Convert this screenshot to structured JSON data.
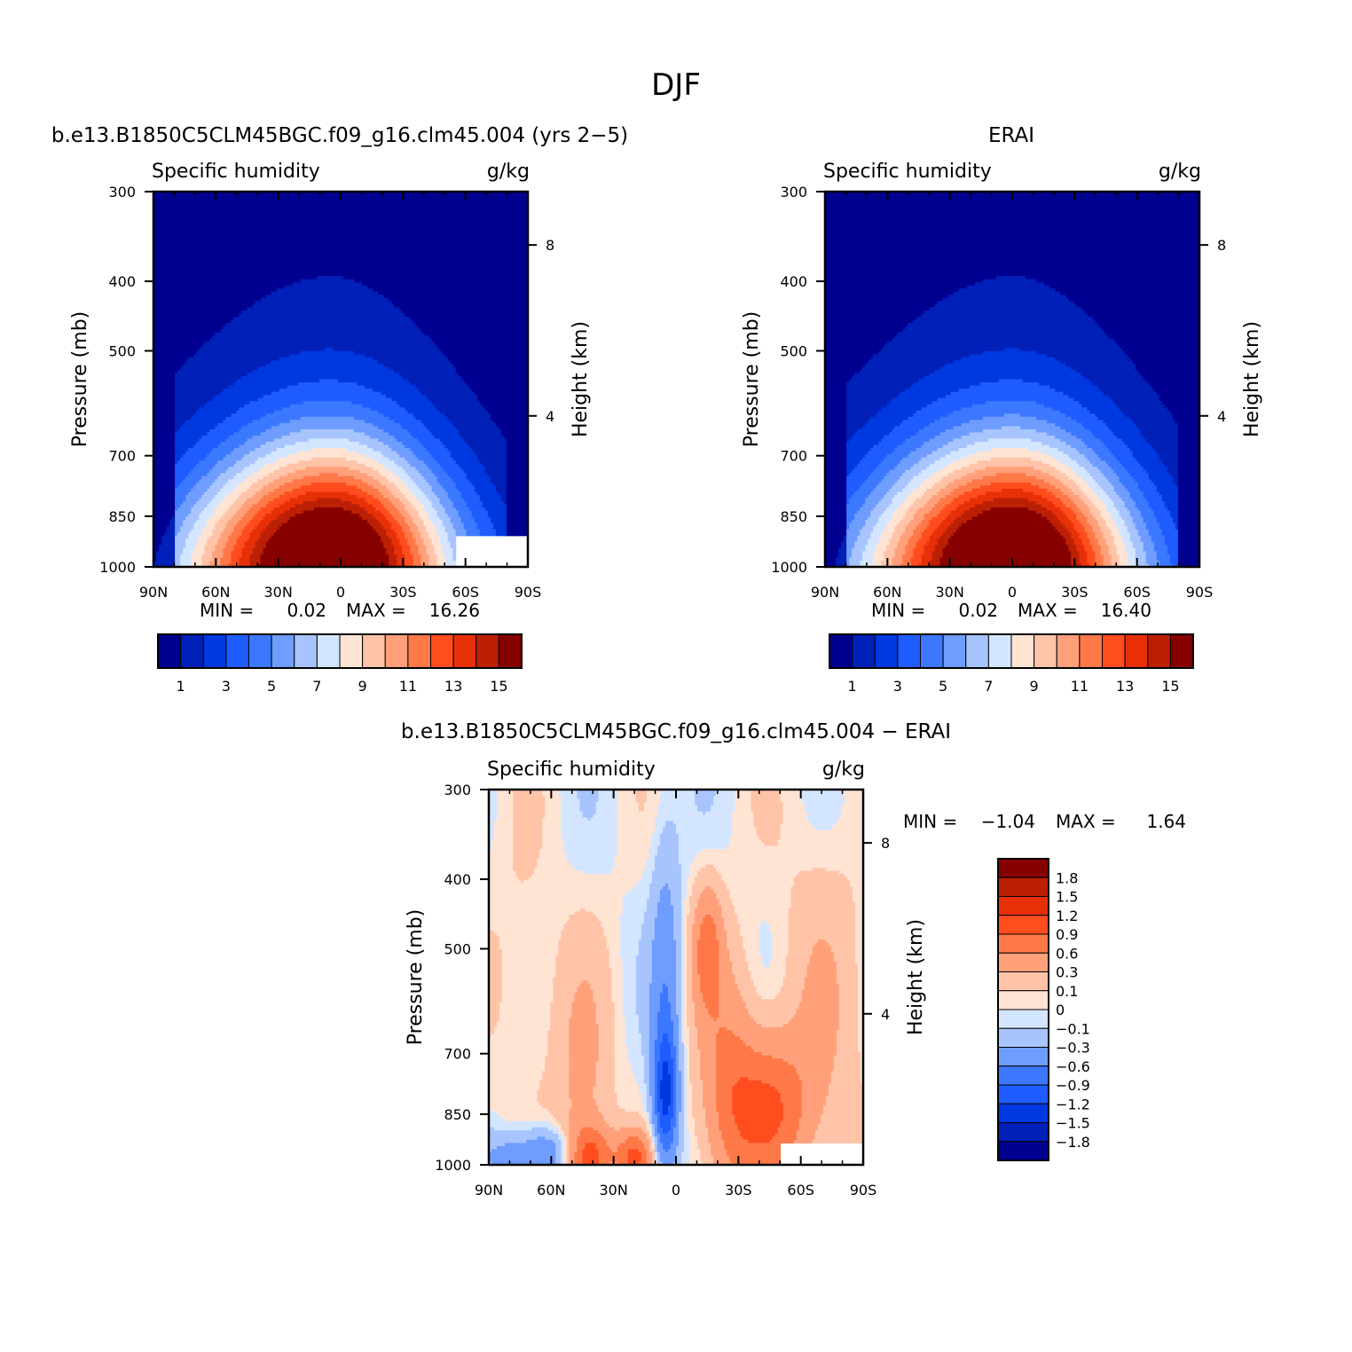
{
  "figure": {
    "title": "DJF",
    "stats_min_label": "MIN =",
    "stats_max_label": "MAX ="
  },
  "chart_data": [
    {
      "type": "heatmap",
      "title": "b.e13.B1850C5CLM45BGC.f09_g16.clm45.004 (yrs 2−5)",
      "variable": "Specific humidity",
      "units": "g/kg",
      "ylabel": "Pressure (mb)",
      "ylabel_right": "Height (km)",
      "x_ticks": [
        "90N",
        "60N",
        "30N",
        "0",
        "30S",
        "60S",
        "90S"
      ],
      "y_ticks": [
        "300",
        "400",
        "500",
        "700",
        "850",
        "1000"
      ],
      "y_ticks_right": [
        "8",
        "4"
      ],
      "ylim": [
        1000,
        300
      ],
      "min": "0.02",
      "max": "16.26",
      "colorbar_labels": [
        "1",
        "3",
        "5",
        "7",
        "9",
        "11",
        "13",
        "15"
      ],
      "colorbar_orientation": "horizontal",
      "peak_latitude": 5,
      "peak_value": 16.26,
      "missing_region": "below ~900 mb poleward of ~55S"
    },
    {
      "type": "heatmap",
      "title": "ERAI",
      "variable": "Specific humidity",
      "units": "g/kg",
      "ylabel": "Pressure (mb)",
      "ylabel_right": "Height (km)",
      "x_ticks": [
        "90N",
        "60N",
        "30N",
        "0",
        "30S",
        "60S",
        "90S"
      ],
      "y_ticks": [
        "300",
        "400",
        "500",
        "700",
        "850",
        "1000"
      ],
      "y_ticks_right": [
        "8",
        "4"
      ],
      "ylim": [
        1000,
        300
      ],
      "min": "0.02",
      "max": "16.40",
      "colorbar_labels": [
        "1",
        "3",
        "5",
        "7",
        "9",
        "11",
        "13",
        "15"
      ],
      "colorbar_orientation": "horizontal",
      "peak_latitude": 0,
      "peak_value": 16.4
    },
    {
      "type": "heatmap",
      "title": "b.e13.B1850C5CLM45BGC.f09_g16.clm45.004 − ERAI",
      "variable": "Specific humidity",
      "units": "g/kg",
      "ylabel": "Pressure (mb)",
      "ylabel_right": "Height (km)",
      "x_ticks": [
        "90N",
        "60N",
        "30N",
        "0",
        "30S",
        "60S",
        "90S"
      ],
      "y_ticks": [
        "300",
        "400",
        "500",
        "700",
        "850",
        "1000"
      ],
      "y_ticks_right": [
        "8",
        "4"
      ],
      "ylim": [
        1000,
        300
      ],
      "min": "−1.04",
      "max": "1.64",
      "colorbar_labels": [
        "1.8",
        "1.5",
        "1.2",
        "0.9",
        "0.6",
        "0.3",
        "0.1",
        "0",
        "−0.1",
        "−0.3",
        "−0.6",
        "−0.9",
        "−1.2",
        "−1.5",
        "−1.8"
      ],
      "colorbar_orientation": "vertical",
      "features": [
        {
          "lat": -45,
          "p": 860,
          "value": 0.8
        },
        {
          "lat": 5,
          "p": 840,
          "value": -1.0
        },
        {
          "lat": -15,
          "p": 520,
          "value": 0.6
        },
        {
          "lat": 42,
          "p": 980,
          "value": 1.0
        }
      ],
      "missing_region": "below ~930 mb poleward of ~50S"
    }
  ],
  "colors": {
    "abs_levels": [
      "#000090",
      "#0020b8",
      "#0038e0",
      "#1e5cff",
      "#3c78ff",
      "#6e9cff",
      "#a8c4ff",
      "#d4e6ff",
      "#ffe4d4",
      "#ffc4a8",
      "#ffa07a",
      "#ff7848",
      "#ff4d1e",
      "#e83008",
      "#bc2004",
      "#860000"
    ],
    "diff_levels": [
      "#000090",
      "#0020b8",
      "#0038e0",
      "#1e5cff",
      "#3c78ff",
      "#6e9cff",
      "#a8c4ff",
      "#d4e6ff",
      "#ffe4d4",
      "#ffc4a8",
      "#ffa07a",
      "#ff7848",
      "#ff4d1e",
      "#e83008",
      "#bc2004",
      "#860000"
    ]
  }
}
